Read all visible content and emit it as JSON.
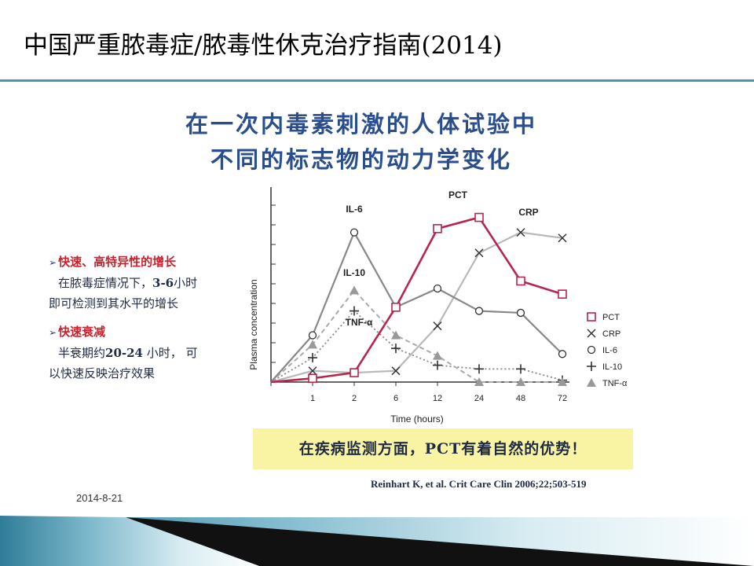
{
  "slide": {
    "title": "中国严重脓毒症/脓毒性休克治疗指南(2014)",
    "headline_line1": "在一次内毒素刺激的人体试验中",
    "headline_line2": "不同的标志物的动力学变化",
    "date": "2014-8-21",
    "citation": "Reinhart K, et al. Crit Care Clin 2006;22;503-519",
    "callout": "在疾病监测方面，PCT有着自然的优势！",
    "notes": {
      "point1_title": "快速、高特异性的增长",
      "point1_pre": "在脓毒症情况下，",
      "point1_bold": "3-6",
      "point1_post": "小时",
      "point1_line2": "即可检测到其水平的增长",
      "point2_title": "快速衰减",
      "point2_pre": "半衰期约",
      "point2_bold": "20-24",
      "point2_post": " 小时， 可",
      "point2_line2": "以快速反映治疗效果"
    },
    "colors": {
      "title_rule": "#4a96a8",
      "headline": "#2a4e8c",
      "point_title": "#cc1f2b",
      "callout_bg": "#f9f3a4",
      "pct": "#b8254e",
      "crp": "#b8b8b8",
      "il6": "#888888",
      "il10": "#888888",
      "tnf": "#aaaaaa"
    }
  },
  "chart_data": {
    "type": "line",
    "xlabel": "Time (hours)",
    "ylabel": "Plasma concentration",
    "categories": [
      "",
      "1",
      "2",
      "6",
      "12",
      "24",
      "48",
      "72"
    ],
    "ylim": [
      0,
      100
    ],
    "legend_position": "right",
    "series": [
      {
        "name": "PCT",
        "marker": "square",
        "values": [
          0,
          2,
          5,
          40,
          82,
          88,
          54,
          47
        ],
        "label": "PCT"
      },
      {
        "name": "CRP",
        "marker": "x",
        "values": [
          0,
          6,
          5,
          6,
          30,
          69,
          80,
          77
        ],
        "label": "CRP"
      },
      {
        "name": "IL-6",
        "marker": "circle",
        "values": [
          0,
          25,
          80,
          40,
          50,
          38,
          37,
          15
        ],
        "label": "IL-6"
      },
      {
        "name": "IL-10",
        "marker": "plus",
        "values": [
          0,
          13,
          38,
          18,
          9,
          7,
          7,
          1
        ],
        "label": "IL-10"
      },
      {
        "name": "TNF-α",
        "marker": "triangle",
        "values": [
          0,
          20,
          49,
          25,
          14,
          0,
          0,
          0
        ],
        "label": "TNF-α"
      }
    ]
  }
}
